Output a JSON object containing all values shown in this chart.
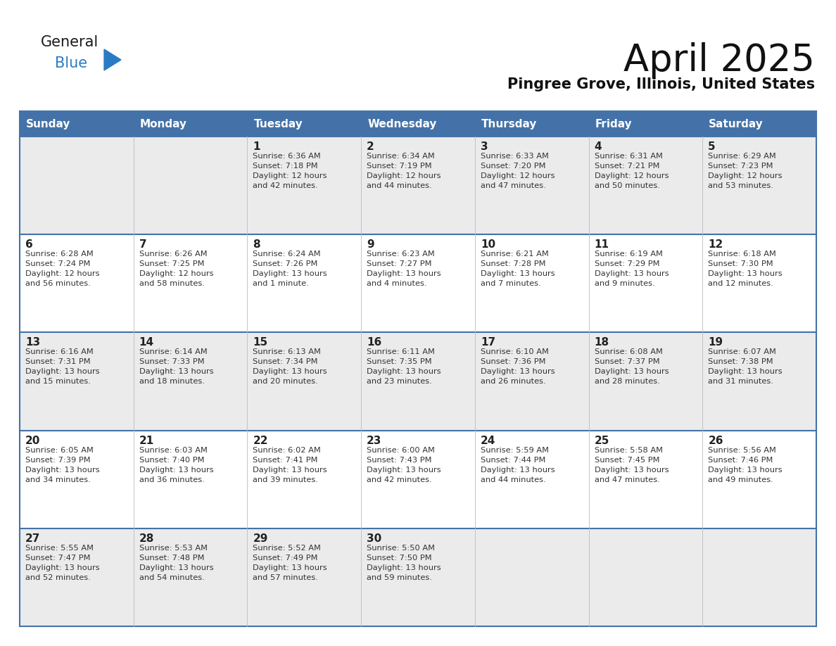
{
  "title": "April 2025",
  "subtitle": "Pingree Grove, Illinois, United States",
  "header_bg_color": "#4472a8",
  "header_text_color": "#ffffff",
  "row_bg_light": "#ebebeb",
  "row_bg_white": "#ffffff",
  "border_color": "#4472a8",
  "text_color": "#333333",
  "day_num_color": "#222222",
  "logo_text_color": "#1a1a1a",
  "logo_blue_color": "#2b7bc4",
  "triangle_color": "#2b7bc4",
  "days_of_week": [
    "Sunday",
    "Monday",
    "Tuesday",
    "Wednesday",
    "Thursday",
    "Friday",
    "Saturday"
  ],
  "weeks": [
    [
      {
        "day": "",
        "sunrise": "",
        "sunset": "",
        "daylight": ""
      },
      {
        "day": "",
        "sunrise": "",
        "sunset": "",
        "daylight": ""
      },
      {
        "day": "1",
        "sunrise": "Sunrise: 6:36 AM",
        "sunset": "Sunset: 7:18 PM",
        "daylight": "Daylight: 12 hours\nand 42 minutes."
      },
      {
        "day": "2",
        "sunrise": "Sunrise: 6:34 AM",
        "sunset": "Sunset: 7:19 PM",
        "daylight": "Daylight: 12 hours\nand 44 minutes."
      },
      {
        "day": "3",
        "sunrise": "Sunrise: 6:33 AM",
        "sunset": "Sunset: 7:20 PM",
        "daylight": "Daylight: 12 hours\nand 47 minutes."
      },
      {
        "day": "4",
        "sunrise": "Sunrise: 6:31 AM",
        "sunset": "Sunset: 7:21 PM",
        "daylight": "Daylight: 12 hours\nand 50 minutes."
      },
      {
        "day": "5",
        "sunrise": "Sunrise: 6:29 AM",
        "sunset": "Sunset: 7:23 PM",
        "daylight": "Daylight: 12 hours\nand 53 minutes."
      }
    ],
    [
      {
        "day": "6",
        "sunrise": "Sunrise: 6:28 AM",
        "sunset": "Sunset: 7:24 PM",
        "daylight": "Daylight: 12 hours\nand 56 minutes."
      },
      {
        "day": "7",
        "sunrise": "Sunrise: 6:26 AM",
        "sunset": "Sunset: 7:25 PM",
        "daylight": "Daylight: 12 hours\nand 58 minutes."
      },
      {
        "day": "8",
        "sunrise": "Sunrise: 6:24 AM",
        "sunset": "Sunset: 7:26 PM",
        "daylight": "Daylight: 13 hours\nand 1 minute."
      },
      {
        "day": "9",
        "sunrise": "Sunrise: 6:23 AM",
        "sunset": "Sunset: 7:27 PM",
        "daylight": "Daylight: 13 hours\nand 4 minutes."
      },
      {
        "day": "10",
        "sunrise": "Sunrise: 6:21 AM",
        "sunset": "Sunset: 7:28 PM",
        "daylight": "Daylight: 13 hours\nand 7 minutes."
      },
      {
        "day": "11",
        "sunrise": "Sunrise: 6:19 AM",
        "sunset": "Sunset: 7:29 PM",
        "daylight": "Daylight: 13 hours\nand 9 minutes."
      },
      {
        "day": "12",
        "sunrise": "Sunrise: 6:18 AM",
        "sunset": "Sunset: 7:30 PM",
        "daylight": "Daylight: 13 hours\nand 12 minutes."
      }
    ],
    [
      {
        "day": "13",
        "sunrise": "Sunrise: 6:16 AM",
        "sunset": "Sunset: 7:31 PM",
        "daylight": "Daylight: 13 hours\nand 15 minutes."
      },
      {
        "day": "14",
        "sunrise": "Sunrise: 6:14 AM",
        "sunset": "Sunset: 7:33 PM",
        "daylight": "Daylight: 13 hours\nand 18 minutes."
      },
      {
        "day": "15",
        "sunrise": "Sunrise: 6:13 AM",
        "sunset": "Sunset: 7:34 PM",
        "daylight": "Daylight: 13 hours\nand 20 minutes."
      },
      {
        "day": "16",
        "sunrise": "Sunrise: 6:11 AM",
        "sunset": "Sunset: 7:35 PM",
        "daylight": "Daylight: 13 hours\nand 23 minutes."
      },
      {
        "day": "17",
        "sunrise": "Sunrise: 6:10 AM",
        "sunset": "Sunset: 7:36 PM",
        "daylight": "Daylight: 13 hours\nand 26 minutes."
      },
      {
        "day": "18",
        "sunrise": "Sunrise: 6:08 AM",
        "sunset": "Sunset: 7:37 PM",
        "daylight": "Daylight: 13 hours\nand 28 minutes."
      },
      {
        "day": "19",
        "sunrise": "Sunrise: 6:07 AM",
        "sunset": "Sunset: 7:38 PM",
        "daylight": "Daylight: 13 hours\nand 31 minutes."
      }
    ],
    [
      {
        "day": "20",
        "sunrise": "Sunrise: 6:05 AM",
        "sunset": "Sunset: 7:39 PM",
        "daylight": "Daylight: 13 hours\nand 34 minutes."
      },
      {
        "day": "21",
        "sunrise": "Sunrise: 6:03 AM",
        "sunset": "Sunset: 7:40 PM",
        "daylight": "Daylight: 13 hours\nand 36 minutes."
      },
      {
        "day": "22",
        "sunrise": "Sunrise: 6:02 AM",
        "sunset": "Sunset: 7:41 PM",
        "daylight": "Daylight: 13 hours\nand 39 minutes."
      },
      {
        "day": "23",
        "sunrise": "Sunrise: 6:00 AM",
        "sunset": "Sunset: 7:43 PM",
        "daylight": "Daylight: 13 hours\nand 42 minutes."
      },
      {
        "day": "24",
        "sunrise": "Sunrise: 5:59 AM",
        "sunset": "Sunset: 7:44 PM",
        "daylight": "Daylight: 13 hours\nand 44 minutes."
      },
      {
        "day": "25",
        "sunrise": "Sunrise: 5:58 AM",
        "sunset": "Sunset: 7:45 PM",
        "daylight": "Daylight: 13 hours\nand 47 minutes."
      },
      {
        "day": "26",
        "sunrise": "Sunrise: 5:56 AM",
        "sunset": "Sunset: 7:46 PM",
        "daylight": "Daylight: 13 hours\nand 49 minutes."
      }
    ],
    [
      {
        "day": "27",
        "sunrise": "Sunrise: 5:55 AM",
        "sunset": "Sunset: 7:47 PM",
        "daylight": "Daylight: 13 hours\nand 52 minutes."
      },
      {
        "day": "28",
        "sunrise": "Sunrise: 5:53 AM",
        "sunset": "Sunset: 7:48 PM",
        "daylight": "Daylight: 13 hours\nand 54 minutes."
      },
      {
        "day": "29",
        "sunrise": "Sunrise: 5:52 AM",
        "sunset": "Sunset: 7:49 PM",
        "daylight": "Daylight: 13 hours\nand 57 minutes."
      },
      {
        "day": "30",
        "sunrise": "Sunrise: 5:50 AM",
        "sunset": "Sunset: 7:50 PM",
        "daylight": "Daylight: 13 hours\nand 59 minutes."
      },
      {
        "day": "",
        "sunrise": "",
        "sunset": "",
        "daylight": ""
      },
      {
        "day": "",
        "sunrise": "",
        "sunset": "",
        "daylight": ""
      },
      {
        "day": "",
        "sunrise": "",
        "sunset": "",
        "daylight": ""
      }
    ]
  ]
}
